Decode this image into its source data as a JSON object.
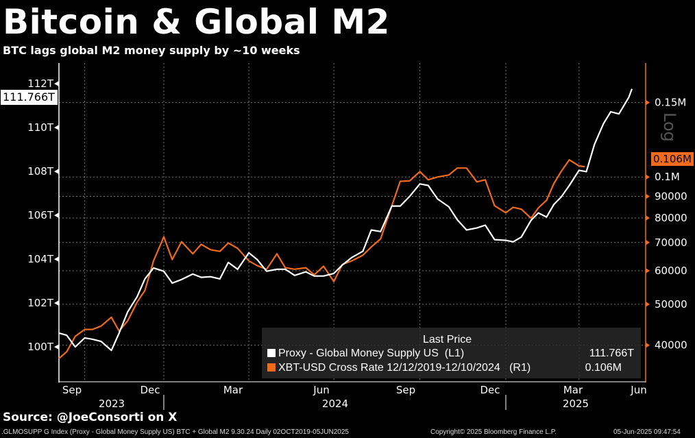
{
  "header": {
    "title": "Bitcoin & Global M2",
    "subtitle": "BTC lags global M2 money supply by ~10 weeks"
  },
  "colors": {
    "m2": "#ffffff",
    "btc": "#f26a1b",
    "background": "#000000",
    "right_axis": "#f26a1b"
  },
  "chart_data": {
    "type": "line",
    "title": "Bitcoin & Global M2",
    "left_axis": {
      "ylim": [
        98.44,
        112.94
      ],
      "ticks": [
        100,
        102,
        104,
        106,
        108,
        110,
        112
      ],
      "tick_labels": [
        "100T",
        "102T",
        "104T",
        "106T",
        "108T",
        "110T",
        "112T"
      ],
      "last_value_tag": "111.766T"
    },
    "right_axis": {
      "scale": "log",
      "scale_label": "Log",
      "ylim": [
        32900,
        186000
      ],
      "ticks": [
        40000,
        50000,
        60000,
        70000,
        80000,
        90000,
        100000,
        150000
      ],
      "tick_labels": [
        "40000",
        "50000",
        "60000",
        "70000",
        "80000",
        "90000",
        "0.1M",
        "0.15M"
      ],
      "last_value_tag": "0.106M"
    },
    "x_axis": {
      "month_labels": [
        "Sep",
        "Dec",
        "Mar",
        "Jun",
        "Sep",
        "Dec",
        "Mar",
        "Jun"
      ],
      "year_labels": [
        "2023",
        "2024",
        "2025"
      ]
    },
    "grid": true,
    "legend": {
      "placement": "bottom-right",
      "header": "Last Price",
      "entries": [
        {
          "label": "Proxy - Global Money Supply US  (L1)",
          "value": "111.766T"
        },
        {
          "label": "XBT-USD Cross Rate 12/12/2019-12/10/2024   (R1)",
          "value": "0.106M"
        }
      ]
    },
    "series": [
      {
        "name": "Proxy - Global Money Supply US",
        "axis": "left",
        "x": [
          "2023-09-01",
          "2023-09-10",
          "2023-09-20",
          "2023-10-01",
          "2023-10-10",
          "2023-10-20",
          "2023-11-01",
          "2023-11-10",
          "2023-11-20",
          "2023-12-01",
          "2023-12-10",
          "2023-12-20",
          "2024-01-01",
          "2024-01-10",
          "2024-01-20",
          "2024-02-01",
          "2024-02-10",
          "2024-02-20",
          "2024-03-01",
          "2024-03-10",
          "2024-03-20",
          "2024-04-01",
          "2024-04-10",
          "2024-04-20",
          "2024-05-01",
          "2024-05-10",
          "2024-05-20",
          "2024-06-01",
          "2024-06-10",
          "2024-06-20",
          "2024-07-01",
          "2024-07-10",
          "2024-07-20",
          "2024-08-01",
          "2024-08-10",
          "2024-08-20",
          "2024-09-01",
          "2024-09-10",
          "2024-09-20",
          "2024-10-01",
          "2024-10-10",
          "2024-10-20",
          "2024-11-01",
          "2024-11-10",
          "2024-11-20",
          "2024-12-01",
          "2024-12-10",
          "2024-12-20",
          "2025-01-01",
          "2025-01-10",
          "2025-01-20",
          "2025-02-01",
          "2025-02-10",
          "2025-02-20",
          "2025-03-01",
          "2025-03-10",
          "2025-03-20",
          "2025-04-01",
          "2025-04-10",
          "2025-04-20",
          "2025-05-01",
          "2025-05-10",
          "2025-05-20",
          "2025-06-01",
          "2025-06-05"
        ],
        "values": [
          100.63,
          100.53,
          100.0,
          100.41,
          100.35,
          100.25,
          99.84,
          100.63,
          101.6,
          102.29,
          103.1,
          103.6,
          103.45,
          102.91,
          103.07,
          103.32,
          103.17,
          103.2,
          103.1,
          103.85,
          103.54,
          104.29,
          103.98,
          103.45,
          103.54,
          103.54,
          103.26,
          103.42,
          103.23,
          103.23,
          103.35,
          103.73,
          104.07,
          104.36,
          105.33,
          105.26,
          106.42,
          106.42,
          106.86,
          107.43,
          107.36,
          106.74,
          106.39,
          105.8,
          105.33,
          105.42,
          105.55,
          104.89,
          104.86,
          104.79,
          105.01,
          105.77,
          106.11,
          105.92,
          106.49,
          106.83,
          107.36,
          108.05,
          107.99,
          109.24,
          110.18,
          110.72,
          110.62,
          111.37,
          111.766
        ]
      },
      {
        "name": "XBT-USD Cross Rate 12/12/2019-12/10/2024",
        "axis": "right",
        "x": [
          "2023-09-01",
          "2023-09-10",
          "2023-09-20",
          "2023-10-01",
          "2023-10-10",
          "2023-10-20",
          "2023-11-01",
          "2023-11-10",
          "2023-11-20",
          "2023-12-01",
          "2023-12-10",
          "2023-12-20",
          "2024-01-01",
          "2024-01-10",
          "2024-01-20",
          "2024-02-01",
          "2024-02-10",
          "2024-02-20",
          "2024-03-01",
          "2024-03-10",
          "2024-03-20",
          "2024-04-01",
          "2024-04-10",
          "2024-04-20",
          "2024-05-01",
          "2024-05-10",
          "2024-05-20",
          "2024-06-01",
          "2024-06-10",
          "2024-06-20",
          "2024-07-01",
          "2024-07-10",
          "2024-07-20",
          "2024-08-01",
          "2024-08-10",
          "2024-08-20",
          "2024-09-01",
          "2024-09-10",
          "2024-09-20",
          "2024-10-01",
          "2024-10-10",
          "2024-10-20",
          "2024-11-01",
          "2024-11-10",
          "2024-11-20",
          "2024-12-01",
          "2024-12-10",
          "2024-12-20",
          "2025-01-01",
          "2025-01-10",
          "2025-01-20",
          "2025-02-01",
          "2025-02-10",
          "2025-02-20",
          "2025-03-01",
          "2025-03-10",
          "2025-03-20",
          "2025-04-01",
          "2025-04-08"
        ],
        "values": [
          37200,
          38600,
          42000,
          43600,
          43600,
          44400,
          46600,
          43200,
          45700,
          50600,
          53900,
          63300,
          72200,
          63800,
          70300,
          65800,
          69300,
          67300,
          66700,
          69800,
          67800,
          63300,
          61700,
          60500,
          65800,
          61000,
          60500,
          61000,
          58700,
          61500,
          56600,
          62100,
          63300,
          65300,
          68300,
          71400,
          85500,
          97700,
          97900,
          103000,
          98500,
          100000,
          101100,
          105000,
          105000,
          97400,
          98500,
          85500,
          82300,
          84800,
          83900,
          79900,
          84500,
          88100,
          96400,
          103000,
          109800,
          106200,
          105800
        ]
      }
    ]
  },
  "footer": {
    "source": "Source: @JoeConsorti on X",
    "description": ".GLMOSUPP G Index (Proxy - Global Money Supply US) BTC + Global M2 9.30.24  Daily 02OCT2019-05JUN2025",
    "copyright": "Copyright© 2025 Bloomberg Finance L.P.",
    "timestamp": "05-Jun-2025 09:47:54"
  }
}
